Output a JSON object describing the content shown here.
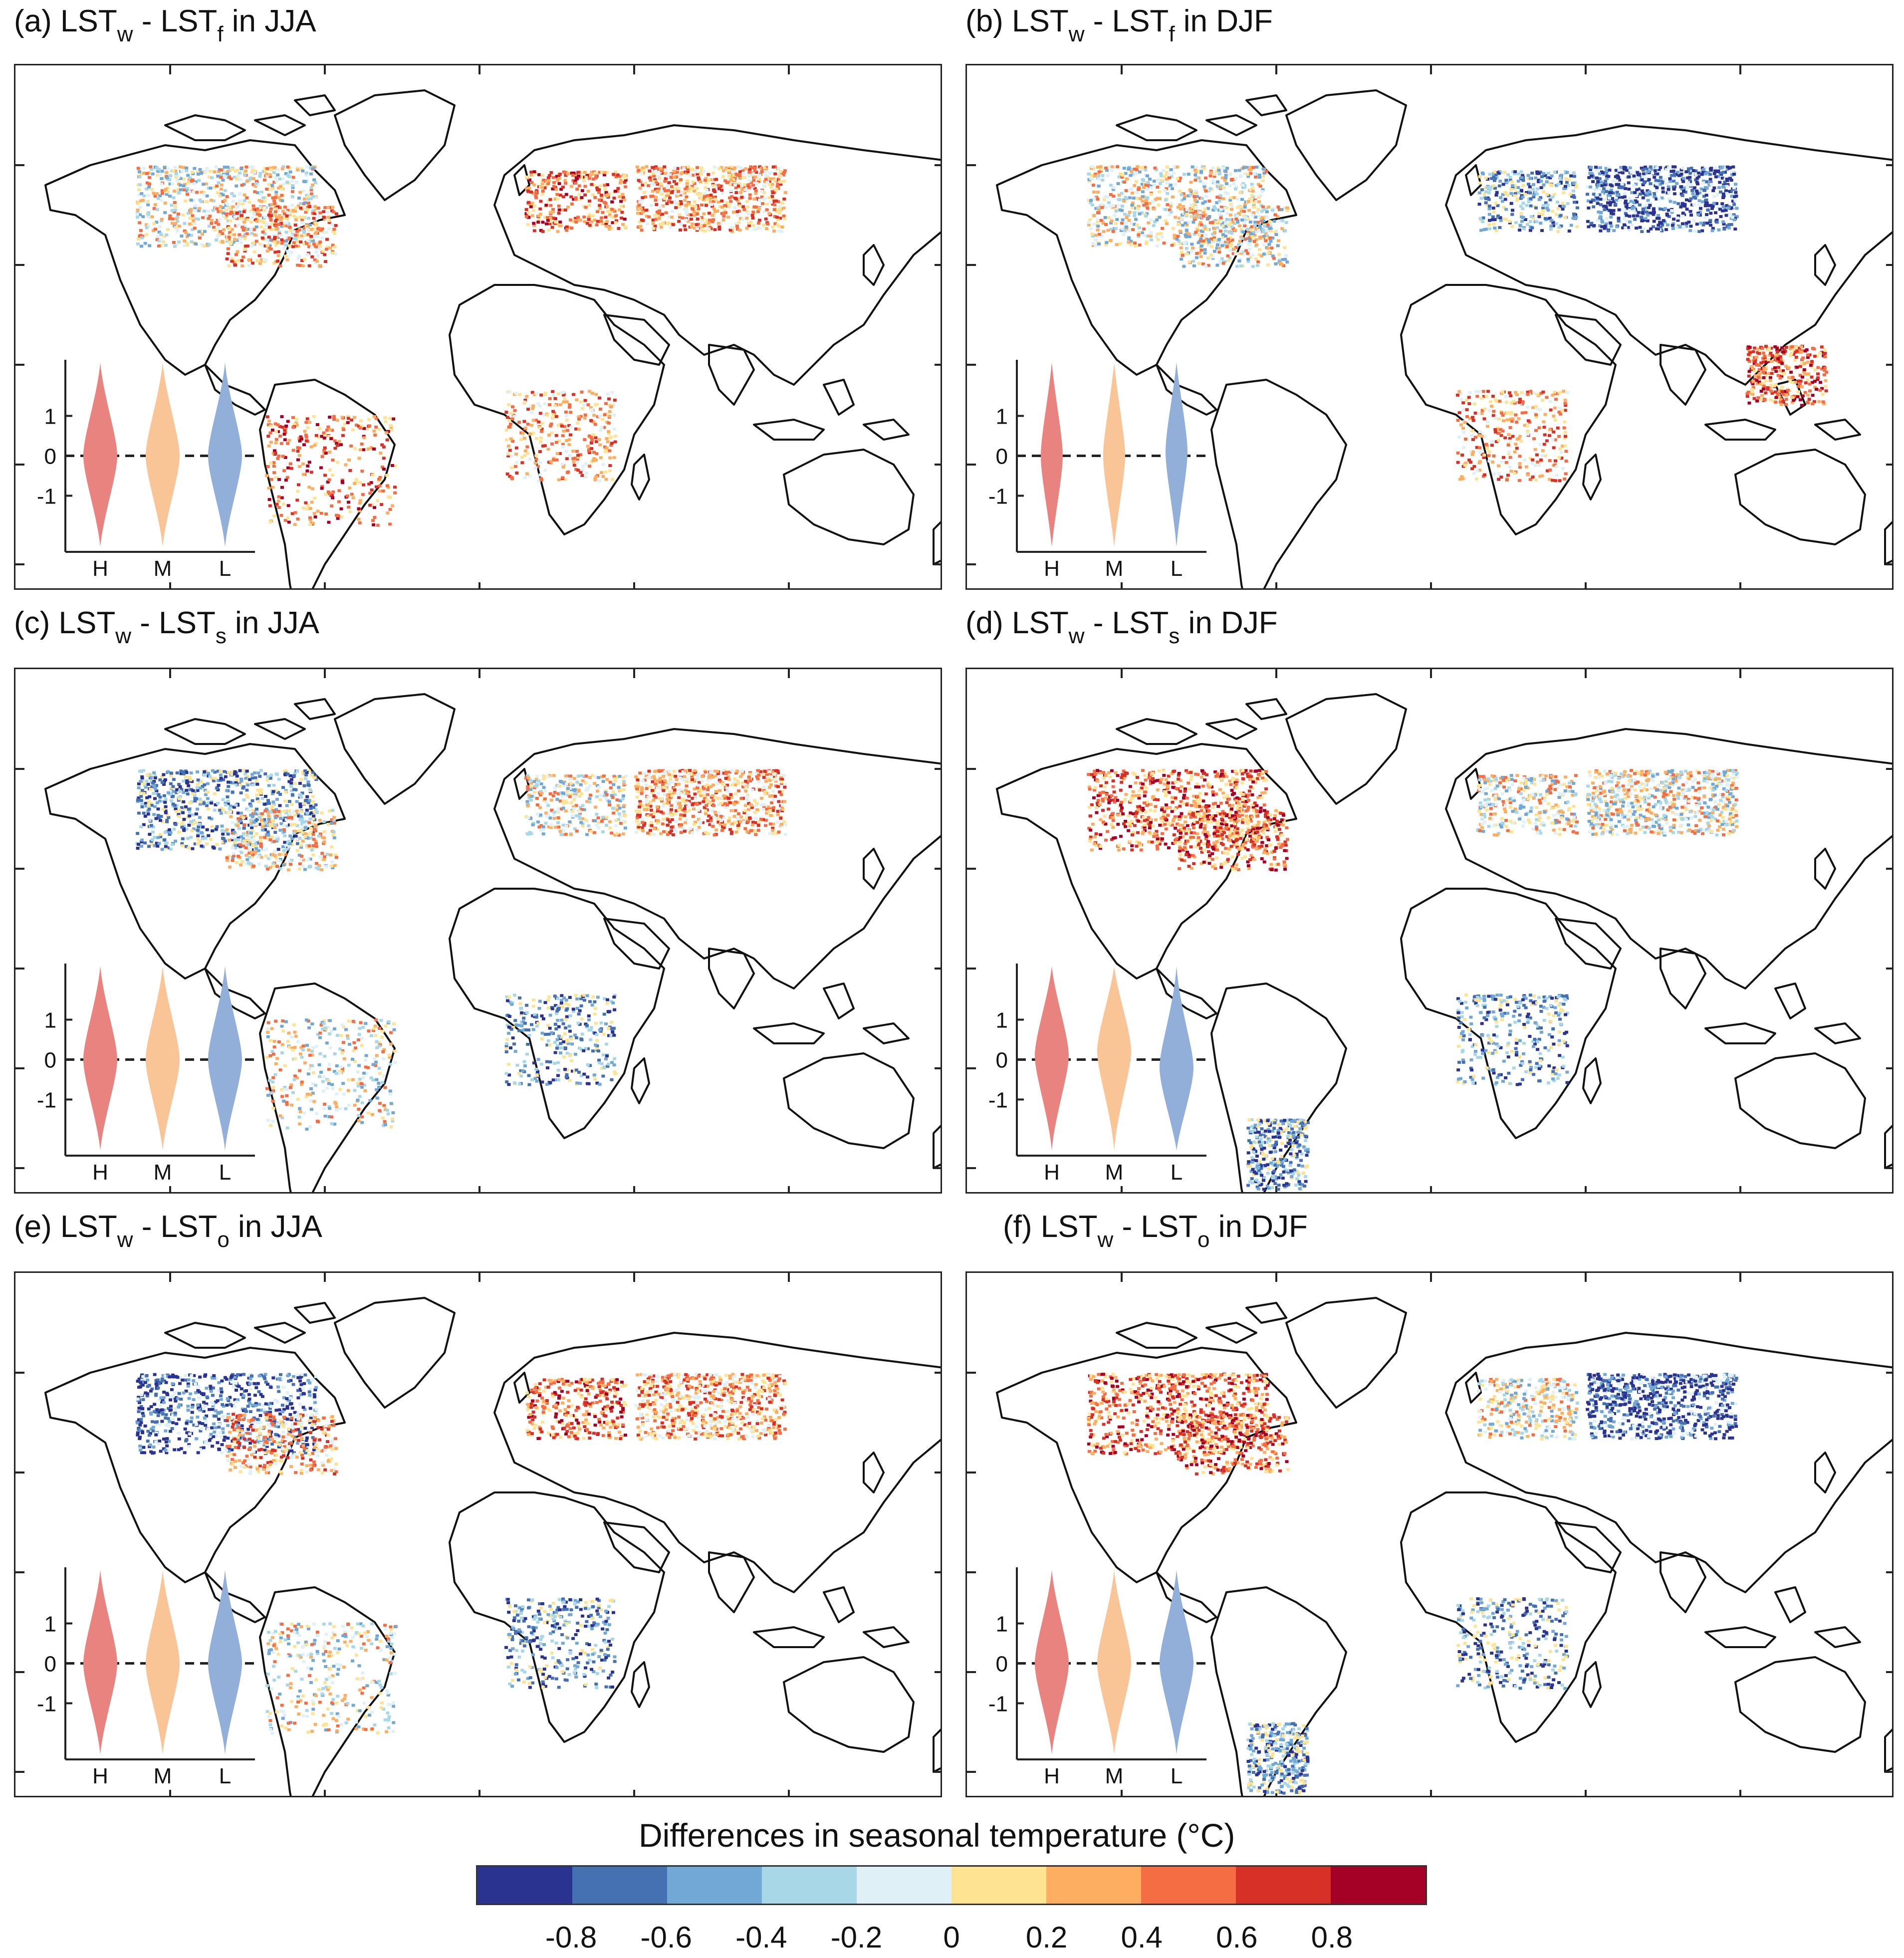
{
  "panels": [
    {
      "id": "a",
      "label": "(a) LST",
      "sub1": "w",
      "mid": " - LST",
      "sub2": "f",
      "tail": " in JJA",
      "regions": [
        [
          "NAmBoreal",
          "mix"
        ],
        [
          "NAmEast",
          "warm"
        ],
        [
          "Europe",
          "hot"
        ],
        [
          "Siberia",
          "warm"
        ],
        [
          "Amazon",
          "hot"
        ],
        [
          "Africa",
          "warm"
        ]
      ],
      "violins": [
        {
          "name": "H",
          "median": 0.0,
          "spread": "wide"
        },
        {
          "name": "M",
          "median": 0.0,
          "spread": "wide"
        },
        {
          "name": "L",
          "median": 0.0,
          "spread": "wide"
        }
      ]
    },
    {
      "id": "b",
      "label": "(b) LST",
      "sub1": "w",
      "mid": " - LST",
      "sub2": "f",
      "tail": " in DJF",
      "regions": [
        [
          "NAmBoreal",
          "mix"
        ],
        [
          "NAmEast",
          "mix"
        ],
        [
          "Europe",
          "cool"
        ],
        [
          "Siberia",
          "cold"
        ],
        [
          "SEAsia",
          "hot"
        ],
        [
          "Africa",
          "warm"
        ]
      ],
      "violins": [
        {
          "name": "H",
          "median": 0.0,
          "spread": "narrow"
        },
        {
          "name": "M",
          "median": 0.0,
          "spread": "narrow"
        },
        {
          "name": "L",
          "median": 0.1,
          "spread": "narrow"
        }
      ]
    },
    {
      "id": "c",
      "label": "(c) LST",
      "sub1": "w",
      "mid": " - LST",
      "sub2": "s",
      "tail": " in JJA",
      "regions": [
        [
          "NAmBoreal",
          "cool"
        ],
        [
          "NAmEast",
          "mix"
        ],
        [
          "Europe",
          "mix"
        ],
        [
          "Siberia",
          "warm"
        ],
        [
          "Amazon",
          "mix"
        ],
        [
          "Africa",
          "cool"
        ]
      ],
      "violins": [
        {
          "name": "H",
          "median": 0.0,
          "spread": "wide"
        },
        {
          "name": "M",
          "median": 0.0,
          "spread": "wide"
        },
        {
          "name": "L",
          "median": 0.0,
          "spread": "wide"
        }
      ]
    },
    {
      "id": "d",
      "label": "(d) LST",
      "sub1": "w",
      "mid": " - LST",
      "sub2": "s",
      "tail": " in DJF",
      "regions": [
        [
          "NAmBoreal",
          "hot"
        ],
        [
          "NAmEast",
          "hot"
        ],
        [
          "Europe",
          "mix"
        ],
        [
          "Siberia",
          "mix"
        ],
        [
          "SAmSouth",
          "cool"
        ],
        [
          "Africa",
          "cool"
        ]
      ],
      "violins": [
        {
          "name": "H",
          "median": 0.1,
          "spread": "wide"
        },
        {
          "name": "M",
          "median": 0.2,
          "spread": "wide"
        },
        {
          "name": "L",
          "median": -0.2,
          "spread": "wide"
        }
      ]
    },
    {
      "id": "e",
      "label": "(e) LST",
      "sub1": "w",
      "mid": " - LST",
      "sub2": "o",
      "tail": " in JJA",
      "regions": [
        [
          "NAmBoreal",
          "cold"
        ],
        [
          "NAmEast",
          "warm"
        ],
        [
          "Europe",
          "hot"
        ],
        [
          "Siberia",
          "warm"
        ],
        [
          "Amazon",
          "mix"
        ],
        [
          "Africa",
          "cool"
        ]
      ],
      "violins": [
        {
          "name": "H",
          "median": 0.0,
          "spread": "wide"
        },
        {
          "name": "M",
          "median": 0.0,
          "spread": "wide"
        },
        {
          "name": "L",
          "median": 0.0,
          "spread": "wide"
        }
      ]
    },
    {
      "id": "f",
      "label": "(f) LST",
      "sub1": "w",
      "mid": " - LST",
      "sub2": "o",
      "tail": " in DJF",
      "regions": [
        [
          "NAmBoreal",
          "hot"
        ],
        [
          "NAmEast",
          "hot"
        ],
        [
          "Europe",
          "mix"
        ],
        [
          "Siberia",
          "cold"
        ],
        [
          "SAmSouth",
          "cool"
        ],
        [
          "Africa",
          "cool"
        ]
      ],
      "violins": [
        {
          "name": "H",
          "median": 0.0,
          "spread": "wide"
        },
        {
          "name": "M",
          "median": 0.0,
          "spread": "wide"
        },
        {
          "name": "L",
          "median": 0.0,
          "spread": "wide"
        }
      ]
    }
  ],
  "violin_axis": {
    "ticks": [
      {
        "value": 1,
        "label": "1"
      },
      {
        "value": 0,
        "label": "0"
      },
      {
        "value": -1,
        "label": "-1"
      }
    ],
    "categories": [
      "H",
      "M",
      "L"
    ]
  },
  "violin_colors": {
    "H": "#e8837f",
    "M": "#f9c596",
    "L": "#91afd8"
  },
  "colorbar": {
    "title": "Differences in seasonal temperature (°C)",
    "colors": [
      "#2b3390",
      "#4571b3",
      "#72a8d5",
      "#a8d7e8",
      "#dff1f7",
      "#fee392",
      "#fdae61",
      "#f46d43",
      "#d73027",
      "#a50026"
    ],
    "tick_labels": [
      "-0.8",
      "-0.6",
      "-0.4",
      "-0.2",
      "0",
      "0.2",
      "0.4",
      "0.6",
      "0.8"
    ]
  }
}
